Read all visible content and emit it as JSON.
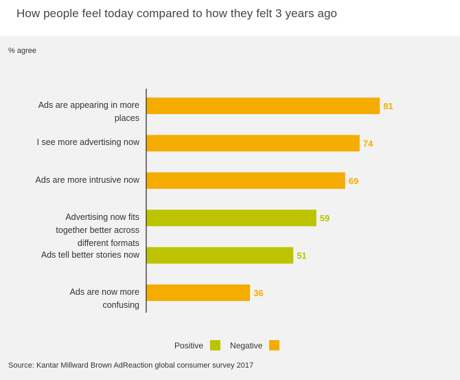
{
  "title": "How people feel today compared to how they felt 3 years ago",
  "unit_label": "% agree",
  "source": "Source: Kantar Millward Brown AdReaction global consumer survey 2017",
  "colors": {
    "positive": "#bcc300",
    "negative": "#f5ac00"
  },
  "legend": [
    {
      "label": "Positive",
      "key": "positive"
    },
    {
      "label": "Negative",
      "key": "negative"
    }
  ],
  "chart_data": {
    "type": "bar",
    "orientation": "horizontal",
    "xlim": [
      0,
      100
    ],
    "grid": false,
    "legend_position": "bottom",
    "categories": [
      "Ads are appearing in more places",
      "I see more advertising now",
      "Ads are more intrusive now",
      "Advertising now fits together better across different formats",
      "Ads tell better stories now",
      "Ads are now more confusing"
    ],
    "values": [
      81,
      74,
      69,
      59,
      51,
      36
    ],
    "sentiment": [
      "negative",
      "negative",
      "negative",
      "positive",
      "positive",
      "negative"
    ]
  }
}
